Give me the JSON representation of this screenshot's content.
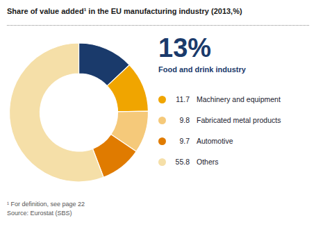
{
  "chart_data": {
    "type": "pie",
    "title": "Share of value added¹ in the EU manufacturing industry (2013,%)",
    "categories": [
      "Food and drink industry",
      "Machinery and equipment",
      "Fabricated metal products",
      "Automotive",
      "Others"
    ],
    "values": [
      13.0,
      11.7,
      9.8,
      9.7,
      55.8
    ],
    "value_labels": [
      "13%",
      "11.7",
      "9.8",
      "9.7",
      "55.8"
    ],
    "colors": [
      "#1a3a6b",
      "#f0a500",
      "#f5c97a",
      "#e07b00",
      "#f5dfa8"
    ],
    "legend": "right",
    "annotations": [
      "¹ For definition, see page 22",
      "Source: Eurostat (SBS)"
    ]
  }
}
